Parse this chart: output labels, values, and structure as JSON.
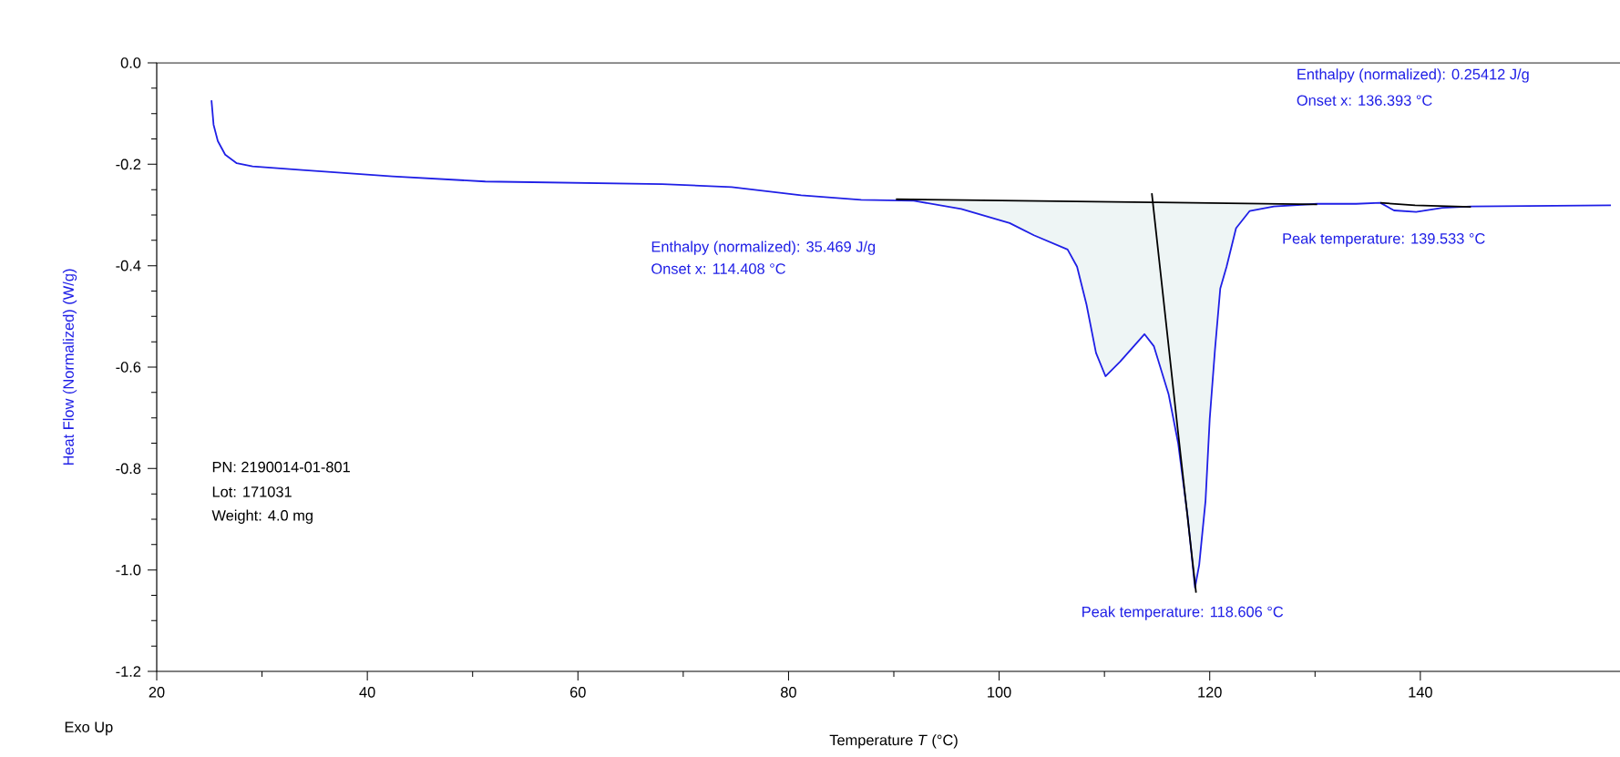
{
  "chart_data": {
    "type": "line",
    "xlabel": "Temperature *T* (°C)",
    "ylabel": "Heat Flow (Normalized)  (W/g)",
    "xlim": [
      20,
      160
    ],
    "ylim": [
      -1.2,
      0
    ],
    "xticks": [
      20,
      40,
      60,
      80,
      100,
      120,
      140
    ],
    "yticks": [
      {
        "value": 0,
        "label": "0.0"
      },
      {
        "value": -0.2,
        "label": "-0.2"
      },
      {
        "value": -0.4,
        "label": "-0.4"
      },
      {
        "value": -0.6,
        "label": "-0.6"
      },
      {
        "value": -0.8,
        "label": "-0.8"
      },
      {
        "value": -1.0,
        "label": "-1.0"
      },
      {
        "value": -1.2,
        "label": "-1.2"
      }
    ],
    "series": [
      {
        "type": "area",
        "color": "#eef5f5",
        "x": [
          90.2,
          91.9,
          96.4,
          101.0,
          103.3,
          106.5,
          107.4,
          108.3,
          109.2,
          110.1,
          111.5,
          113.8,
          114.7,
          116.1,
          117.0,
          117.9,
          118.6,
          119.0,
          119.6,
          120.0,
          120.5,
          121.0,
          121.6,
          122.5,
          123.8,
          126.1,
          130.2
        ],
        "values": [
          -0.269,
          -0.272,
          -0.288,
          -0.316,
          -0.34,
          -0.368,
          -0.402,
          -0.477,
          -0.572,
          -0.618,
          -0.589,
          -0.535,
          -0.559,
          -0.654,
          -0.75,
          -0.894,
          -1.035,
          -0.99,
          -0.864,
          -0.702,
          -0.565,
          -0.445,
          -0.402,
          -0.326,
          -0.292,
          -0.283,
          -0.279
        ]
      },
      {
        "color": "#1f1fe6",
        "x": [
          25.2,
          25.4,
          25.8,
          26.5,
          27.6,
          29.1,
          33.5,
          42.4,
          51.2,
          68.0,
          74.6,
          81.2,
          86.9,
          91.9,
          96.4,
          101.0,
          103.3,
          106.5,
          107.4,
          108.3,
          109.2,
          110.1,
          111.5,
          113.8,
          114.7,
          116.1,
          117.0,
          117.9,
          118.6,
          119.0,
          119.6,
          120.0,
          120.5,
          121.0,
          121.6,
          122.5,
          123.8,
          126.1,
          130.2,
          133.9,
          136.2,
          137.5,
          139.6,
          142.1,
          144.8,
          158.1
        ],
        "values": [
          -0.074,
          -0.122,
          -0.154,
          -0.181,
          -0.198,
          -0.204,
          -0.211,
          -0.224,
          -0.234,
          -0.239,
          -0.245,
          -0.261,
          -0.27,
          -0.272,
          -0.288,
          -0.316,
          -0.34,
          -0.368,
          -0.402,
          -0.477,
          -0.572,
          -0.618,
          -0.589,
          -0.535,
          -0.559,
          -0.654,
          -0.75,
          -0.894,
          -1.035,
          -0.99,
          -0.864,
          -0.702,
          -0.565,
          -0.445,
          -0.402,
          -0.326,
          -0.292,
          -0.283,
          -0.278,
          -0.278,
          -0.276,
          -0.291,
          -0.294,
          -0.286,
          -0.283,
          -0.281
        ]
      },
      {
        "type": "line",
        "color": "#000000",
        "x": [
          90.2,
          114.5,
          130.2
        ],
        "values": [
          -0.269,
          -0.275,
          -0.279
        ]
      },
      {
        "type": "line",
        "color": "#000000",
        "x": [
          114.5,
          117.0,
          118.7
        ],
        "values": [
          -0.257,
          -0.73,
          -1.045
        ]
      },
      {
        "type": "line",
        "color": "#000000",
        "x": [
          136.2,
          139.5,
          144.8
        ],
        "values": [
          -0.276,
          -0.281,
          -0.284
        ]
      }
    ],
    "annotations": [
      "Enthalpy (normalized): 35.469 J/g",
      "Onset x: 114.408 °C",
      {
        "text": "Peak temperature: 118.606 °C",
        "x": 118.606,
        "y": -1.035
      },
      "Enthalpy (normalized): 0.25412 J/g",
      "Onset x: 136.393 °C",
      {
        "text": "Peak temperature: 139.533 °C",
        "x": 139.533,
        "y": -0.294
      },
      "PN: 2190014-01-801",
      "Lot: 171031",
      "Weight:  4.0 mg",
      "Exo Up"
    ]
  }
}
